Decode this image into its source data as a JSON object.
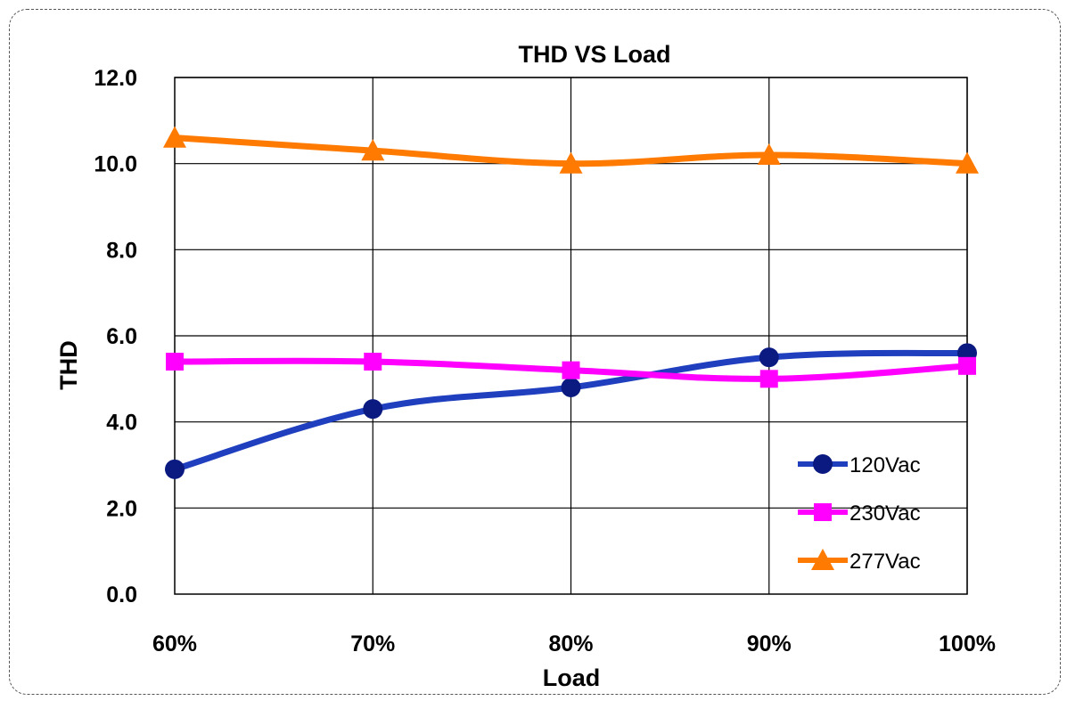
{
  "chart_data": {
    "type": "line",
    "title": "THD VS  Load",
    "xlabel": "Load",
    "ylabel": "THD",
    "categories": [
      "60%",
      "70%",
      "80%",
      "90%",
      "100%"
    ],
    "ylim": [
      0,
      12
    ],
    "yticks": [
      "0.0",
      "2.0",
      "4.0",
      "6.0",
      "8.0",
      "10.0",
      "12.0"
    ],
    "grid": true,
    "legend_position": "bottom-right",
    "series": [
      {
        "name": "120Vac",
        "values": [
          2.9,
          4.3,
          4.8,
          5.5,
          5.6
        ],
        "color": "#1f3fbf",
        "marker": "circle",
        "marker_color": "#0a1a80"
      },
      {
        "name": "230Vac",
        "values": [
          5.4,
          5.4,
          5.2,
          5.0,
          5.3
        ],
        "color": "#ff00ff",
        "marker": "square",
        "marker_color": "#ff00ff"
      },
      {
        "name": "277Vac",
        "values": [
          10.6,
          10.3,
          10.0,
          10.2,
          10.0
        ],
        "color": "#ff7a00",
        "marker": "triangle",
        "marker_color": "#ff7a00"
      }
    ]
  }
}
